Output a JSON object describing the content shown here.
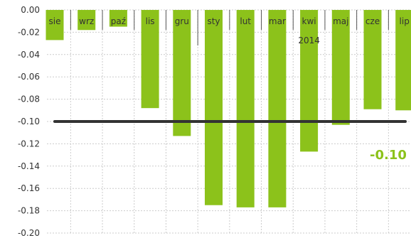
{
  "chart_data": {
    "type": "bar",
    "categories": [
      "sie",
      "wrz",
      "paź",
      "lis",
      "gru",
      "sty",
      "lut",
      "mar",
      "kwi",
      "maj",
      "cze",
      "lip"
    ],
    "values": [
      -0.027,
      -0.018,
      -0.015,
      -0.088,
      -0.113,
      -0.175,
      -0.177,
      -0.177,
      -0.127,
      -0.103,
      -0.089,
      -0.09
    ],
    "ylim": [
      -0.2,
      0.0
    ],
    "yticks": [
      "0.00",
      "-0.02",
      "-0.04",
      "-0.06",
      "-0.08",
      "-0.10",
      "-0.12",
      "-0.14",
      "-0.16",
      "-0.18",
      "-0.20"
    ],
    "ytick_values": [
      0.0,
      -0.02,
      -0.04,
      -0.06,
      -0.08,
      -0.1,
      -0.12,
      -0.14,
      -0.16,
      -0.18,
      -0.2
    ],
    "year_label": "2014",
    "year_starts_at_category": "sty",
    "year_label_under_category": "kwi",
    "reference_line": {
      "value": -0.1,
      "label": "-0.10",
      "color": "#333333",
      "label_color": "#8cc21b"
    },
    "bar_color": "#8cc21b",
    "grid": true,
    "grid_color": "#cccccc",
    "legend": "none",
    "title": "",
    "xlabel": "",
    "ylabel": ""
  }
}
